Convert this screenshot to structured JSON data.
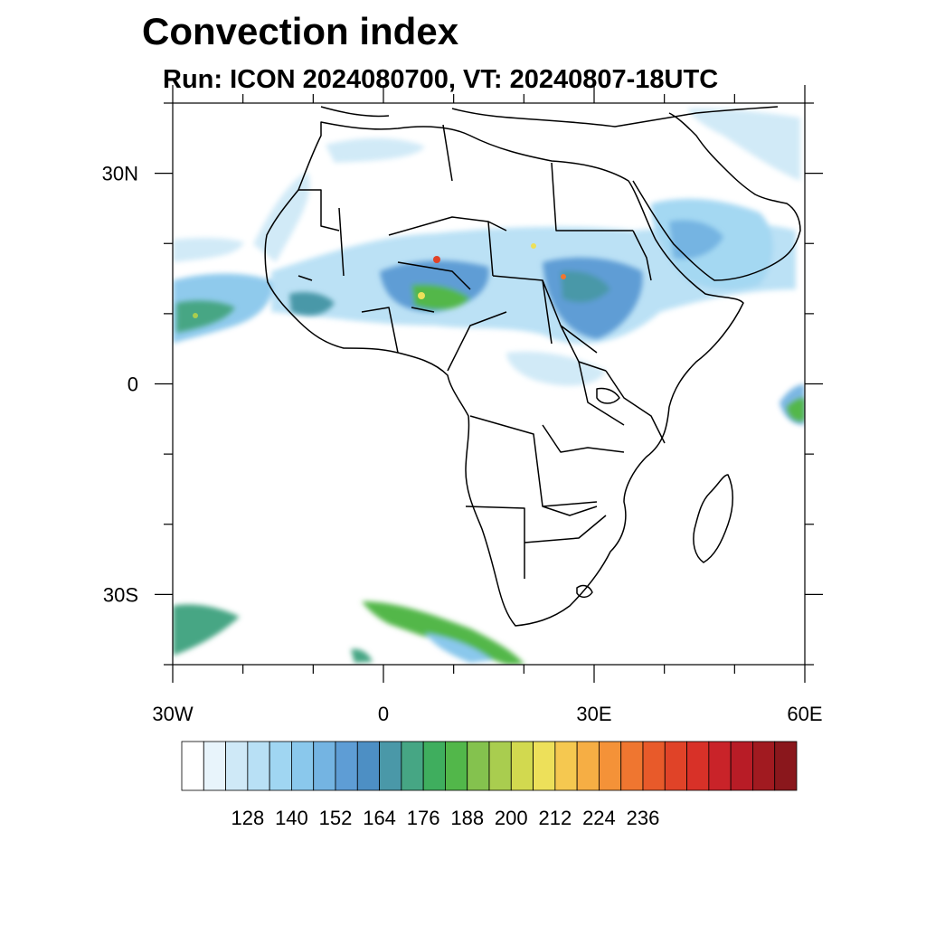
{
  "title": "Convection index",
  "subtitle": "Run: ICON 2024080700,  VT: 20240807-18UTC",
  "map": {
    "projection": "cylindrical-equidistant",
    "lon_range": [
      -30,
      60
    ],
    "lat_range": [
      -40,
      40
    ],
    "lat_ticks": [
      {
        "value": 30,
        "label": "30N"
      },
      {
        "value": 0,
        "label": "0"
      },
      {
        "value": -30,
        "label": "30S"
      }
    ],
    "lon_ticks": [
      {
        "value": -30,
        "label": "30W"
      },
      {
        "value": 0,
        "label": "0"
      },
      {
        "value": 30,
        "label": "30E"
      },
      {
        "value": 60,
        "label": "60E"
      }
    ]
  },
  "colorbar": {
    "colors": [
      "#ffffff",
      "#e8f4fb",
      "#cfe9f7",
      "#b8e0f5",
      "#a0d6f2",
      "#8ac8ec",
      "#74b4e2",
      "#5e9dd5",
      "#4d8fc4",
      "#4a98a8",
      "#46a684",
      "#3fae5e",
      "#52b74a",
      "#84c24e",
      "#a9cd4f",
      "#d2d94f",
      "#ede05a",
      "#f5c850",
      "#f6ae44",
      "#f49238",
      "#ef7630",
      "#e85a2a",
      "#e04328",
      "#d83128",
      "#c92329",
      "#b81c26",
      "#a11a20",
      "#8a171c"
    ],
    "labels": [
      "128",
      "140",
      "152",
      "164",
      "176",
      "188",
      "200",
      "212",
      "224",
      "236"
    ]
  }
}
